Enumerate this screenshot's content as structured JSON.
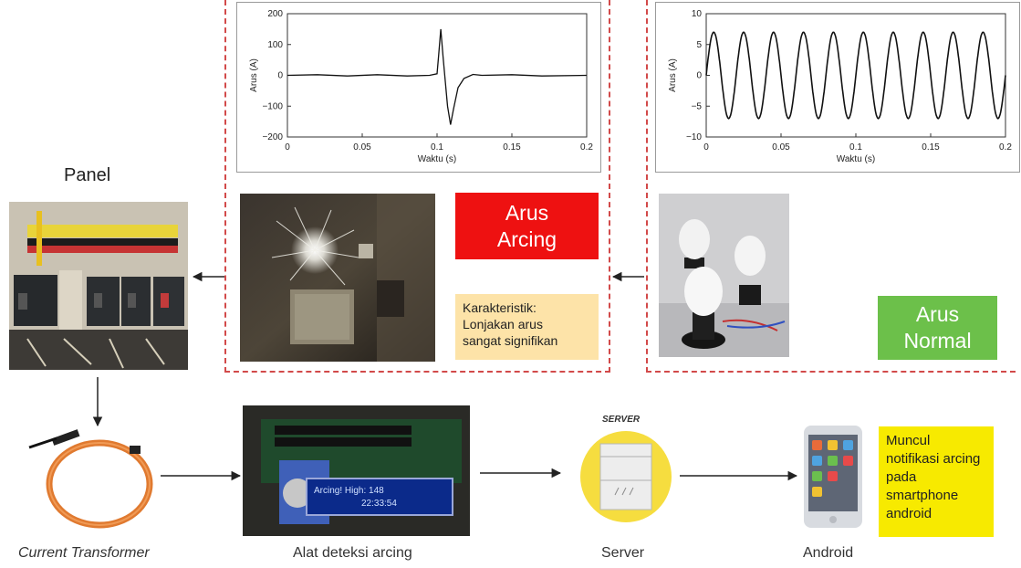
{
  "panel_title": "Panel",
  "arcing_label": "Arus\nArcing",
  "normal_label": "Arus\nNormal",
  "arcing_note": "Karakteristik:\nLonjakan arus\nsangat signifikan",
  "android_note": "Muncul\nnotifikasi arcing\npada\nsmartphone\nandroid",
  "server_tag": "SERVER",
  "captions": {
    "ct": "Current Transformer",
    "detector": "Alat deteksi arcing",
    "server": "Server",
    "android": "Android"
  },
  "lcd_text": {
    "line1": "Arcing! High: 148",
    "line2": "22:33:54"
  },
  "chart_data": [
    {
      "type": "line",
      "ylabel": "Arus (A)",
      "xlabel": "Waktu (s)",
      "xlim": [
        0,
        0.2
      ],
      "ylim": [
        -200,
        200
      ],
      "xticks": [
        "0",
        "0.05",
        "0.1",
        "0.15",
        "0.2"
      ],
      "yticks": [
        "200",
        "100",
        "0",
        "−100",
        "−200"
      ],
      "series": [
        {
          "x": [
            0,
            0.02,
            0.04,
            0.06,
            0.08,
            0.095,
            0.1,
            0.101,
            0.1025,
            0.104,
            0.107,
            0.109,
            0.111,
            0.114,
            0.118,
            0.124,
            0.13,
            0.15,
            0.17,
            0.2
          ],
          "values": [
            0,
            2,
            -2,
            2,
            -2,
            0,
            5,
            60,
            150,
            60,
            -100,
            -160,
            -110,
            -40,
            -10,
            3,
            0,
            2,
            -2,
            0
          ]
        }
      ]
    },
    {
      "type": "line",
      "ylabel": "Arus (A)",
      "xlabel": "Waktu (s)",
      "xlim": [
        0,
        0.2
      ],
      "ylim": [
        -10,
        10
      ],
      "xticks": [
        "0",
        "0.05",
        "0.1",
        "0.15",
        "0.2"
      ],
      "yticks": [
        "10",
        "5",
        "0",
        "−5",
        "−10"
      ],
      "series": [
        {
          "frequency_hz": 50,
          "amplitude": 7
        }
      ]
    }
  ]
}
